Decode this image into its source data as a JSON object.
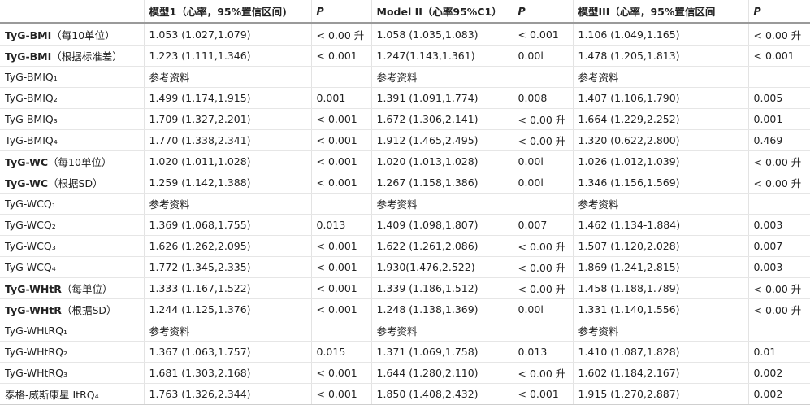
{
  "headers": [
    "",
    "模型1（心率，95%置信区间)",
    "P",
    "Model II（心率95%C1）",
    "P",
    "模型III（心率，95%置信区间",
    "P"
  ],
  "rows": [
    {
      "bold": "TyG-BMI",
      "label": "（每10单位）",
      "cells": [
        "1.053 (1.027,1.079)",
        "< 0.00 升",
        "1.058 (1.035,1.083)",
        "< 0.001",
        "1.106 (1.049,1.165)",
        "< 0.00 升"
      ]
    },
    {
      "bold": "TyG-BMI",
      "label": "（根据标准差）",
      "cells": [
        "1.223 (1.111,1.346)",
        "< 0.001",
        "1.247(1.143,1.361)",
        "0.00l",
        "1.478 (1.205,1.813)",
        "< 0.001"
      ]
    },
    {
      "bold": "",
      "label": "TyG-BMIQ₁",
      "cells": [
        "参考资料",
        "",
        "参考资料",
        "",
        "参考资料",
        ""
      ]
    },
    {
      "bold": "",
      "label": "TyG-BMIQ₂",
      "cells": [
        "1.499 (1.174,1.915)",
        "0.001",
        "1.391 (1.091,1.774)",
        "0.008",
        "1.407 (1.106,1.790)",
        "0.005"
      ]
    },
    {
      "bold": "",
      "label": "TyG-BMIQ₃",
      "cells": [
        "1.709 (1.327,2.201)",
        "< 0.001",
        "1.672 (1.306,2.141)",
        "< 0.00 升",
        "1.664 (1.229,2.252)",
        "0.001"
      ]
    },
    {
      "bold": "",
      "label": "TyG-BMIQ₄",
      "cells": [
        "1.770 (1.338,2.341)",
        "< 0.001",
        "1.912 (1.465,2.495)",
        "< 0.00 升",
        "1.320 (0.622,2.800)",
        "0.469"
      ]
    },
    {
      "bold": "TyG-WC",
      "label": "（每10单位）",
      "cells": [
        "1.020 (1.011,1.028)",
        "< 0.001",
        "1.020 (1.013,1.028)",
        "0.00l",
        "1.026 (1.012,1.039)",
        "< 0.00 升"
      ]
    },
    {
      "bold": "TyG-WC",
      "label": "（根据SD）",
      "cells": [
        "1.259 (1.142,1.388)",
        "< 0.001",
        "1.267 (1.158,1.386)",
        "0.00l",
        "1.346 (1.156,1.569)",
        "< 0.00 升"
      ]
    },
    {
      "bold": "",
      "label": "TyG-WCQ₁",
      "cells": [
        "参考资料",
        "",
        "参考资料",
        "",
        "参考资料",
        ""
      ]
    },
    {
      "bold": "",
      "label": "TyG-WCQ₂",
      "cells": [
        "1.369 (1.068,1.755)",
        "0.013",
        "1.409 (1.098,1.807)",
        "0.007",
        "1.462 (1.134-1.884)",
        "0.003"
      ]
    },
    {
      "bold": "",
      "label": "TyG-WCQ₃",
      "cells": [
        "1.626 (1.262,2.095)",
        "< 0.001",
        "1.622 (1.261,2.086)",
        "< 0.00 升",
        "1.507 (1.120,2.028)",
        "0.007"
      ]
    },
    {
      "bold": "",
      "label": "TyG-WCQ₄",
      "cells": [
        "1.772 (1.345,2.335)",
        "< 0.001",
        "1.930(1.476,2.522)",
        "< 0.00 升",
        "1.869 (1.241,2.815)",
        "0.003"
      ]
    },
    {
      "bold": "TyG-WHtR",
      "label": "（每单位）",
      "cells": [
        "1.333 (1.167,1.522)",
        "< 0.001",
        "1.339 (1.186,1.512)",
        "< 0.00 升",
        "1.458 (1.188,1.789)",
        "< 0.00 升"
      ]
    },
    {
      "bold": "TyG-WHtR",
      "label": "（根据SD）",
      "cells": [
        "1.244 (1.125,1.376)",
        "< 0.001",
        "1.248 (1.138,1.369)",
        "0.00l",
        "1.331 (1.140,1.556)",
        "< 0.00 升"
      ]
    },
    {
      "bold": "",
      "label": "TyG-WHtRQ₁",
      "cells": [
        "参考资料",
        "",
        "参考资料",
        "",
        "参考资料",
        ""
      ]
    },
    {
      "bold": "",
      "label": "TyG-WHtRQ₂",
      "cells": [
        "1.367 (1.063,1.757)",
        "0.015",
        "1.371 (1.069,1.758)",
        "0.013",
        "1.410 (1.087,1.828)",
        "0.01"
      ]
    },
    {
      "bold": "",
      "label": "TyG-WHtRQ₃",
      "cells": [
        "1.681 (1.303,2.168)",
        "< 0.001",
        "1.644 (1.280,2.110)",
        "< 0.00 升",
        "1.602 (1.184,2.167)",
        "0.002"
      ]
    },
    {
      "bold": "",
      "label": "泰格-威斯康星 ItRQ₄",
      "cells": [
        "1.763 (1.326,2.344)",
        "< 0.001",
        "1.850 (1.408,2.432)",
        "< 0.001",
        "1.915 (1.270,2.887)",
        "0.002"
      ]
    }
  ]
}
